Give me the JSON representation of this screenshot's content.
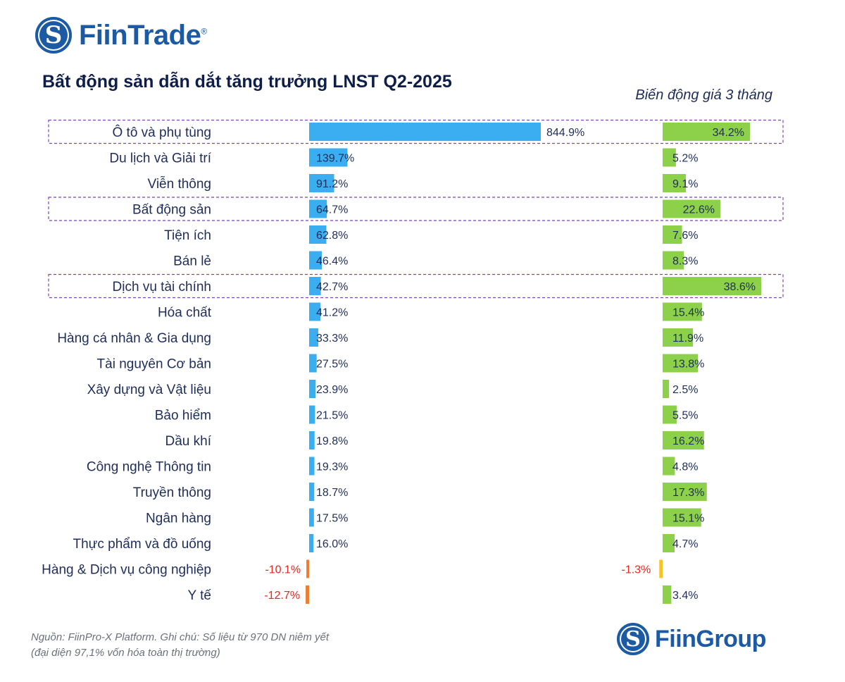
{
  "brand_top": {
    "name": "FiinTrade",
    "registered": "®",
    "mark": "S"
  },
  "title": "Bất động sản dẫn dắt tăng trưởng LNST Q2-2025",
  "subtitle": "Biến động giá 3 tháng",
  "source": {
    "line1": "Nguồn: FiinPro-X Platform. Ghi chú: Số liệu từ 970 DN niêm yết",
    "line2": "(đại diện 97,1% vốn hóa toàn thị trường)"
  },
  "brand_bottom": {
    "name": "FiinGroup",
    "mark": "S"
  },
  "colors": {
    "profit_positive": "#3aaef0",
    "profit_negative": "#ee7d31",
    "price_positive": "#8dd14a",
    "price_negative": "#f7c325",
    "highlight_border": "#7a45b5",
    "negative_label": "#e8251e"
  },
  "chart_data": {
    "type": "bar",
    "orientation": "horizontal",
    "categories": [
      "Ô tô và phụ tùng",
      "Du lịch và Giải trí",
      "Viễn thông",
      "Bất động sản",
      "Tiện ích",
      "Bán lẻ",
      "Dịch vụ tài chính",
      "Hóa chất",
      "Hàng cá nhân & Gia dụng",
      "Tài nguyên Cơ bản",
      "Xây dựng và Vật liệu",
      "Bảo hiểm",
      "Dầu khí",
      "Công nghệ Thông tin",
      "Truyền thông",
      "Ngân hàng",
      "Thực phẩm và đồ uống",
      "Hàng & Dịch vụ công nghiệp",
      "Y tế"
    ],
    "highlighted": [
      "Ô tô và phụ tùng",
      "Bất động sản",
      "Dịch vụ tài chính"
    ],
    "series": [
      {
        "name": "Tăng trưởng LNST Q2-2025",
        "values": [
          844.9,
          139.7,
          91.2,
          64.7,
          62.8,
          46.4,
          42.7,
          41.2,
          33.3,
          27.5,
          23.9,
          21.5,
          19.8,
          19.3,
          18.7,
          17.5,
          16.0,
          -10.1,
          -12.7
        ],
        "labels": [
          "844.9%",
          "139.7%",
          "91.2%",
          "64.7%",
          "62.8%",
          "46.4%",
          "42.7%",
          "41.2%",
          "33.3%",
          "27.5%",
          "23.9%",
          "21.5%",
          "19.8%",
          "19.3%",
          "18.7%",
          "17.5%",
          "16.0%",
          "-10.1%",
          "-12.7%"
        ]
      },
      {
        "name": "Biến động giá 3 tháng",
        "values": [
          34.2,
          5.2,
          9.1,
          22.6,
          7.6,
          8.3,
          38.6,
          15.4,
          11.9,
          13.8,
          2.5,
          5.5,
          16.2,
          4.8,
          17.3,
          15.1,
          4.7,
          -1.3,
          3.4
        ],
        "labels": [
          "34.2%",
          "5.2%",
          "9.1%",
          "22.6%",
          "7.6%",
          "8.3%",
          "38.6%",
          "15.4%",
          "11.9%",
          "13.8%",
          "2.5%",
          "5.5%",
          "16.2%",
          "4.8%",
          "17.3%",
          "15.1%",
          "4.7%",
          "-1.3%",
          "3.4%"
        ]
      }
    ]
  }
}
